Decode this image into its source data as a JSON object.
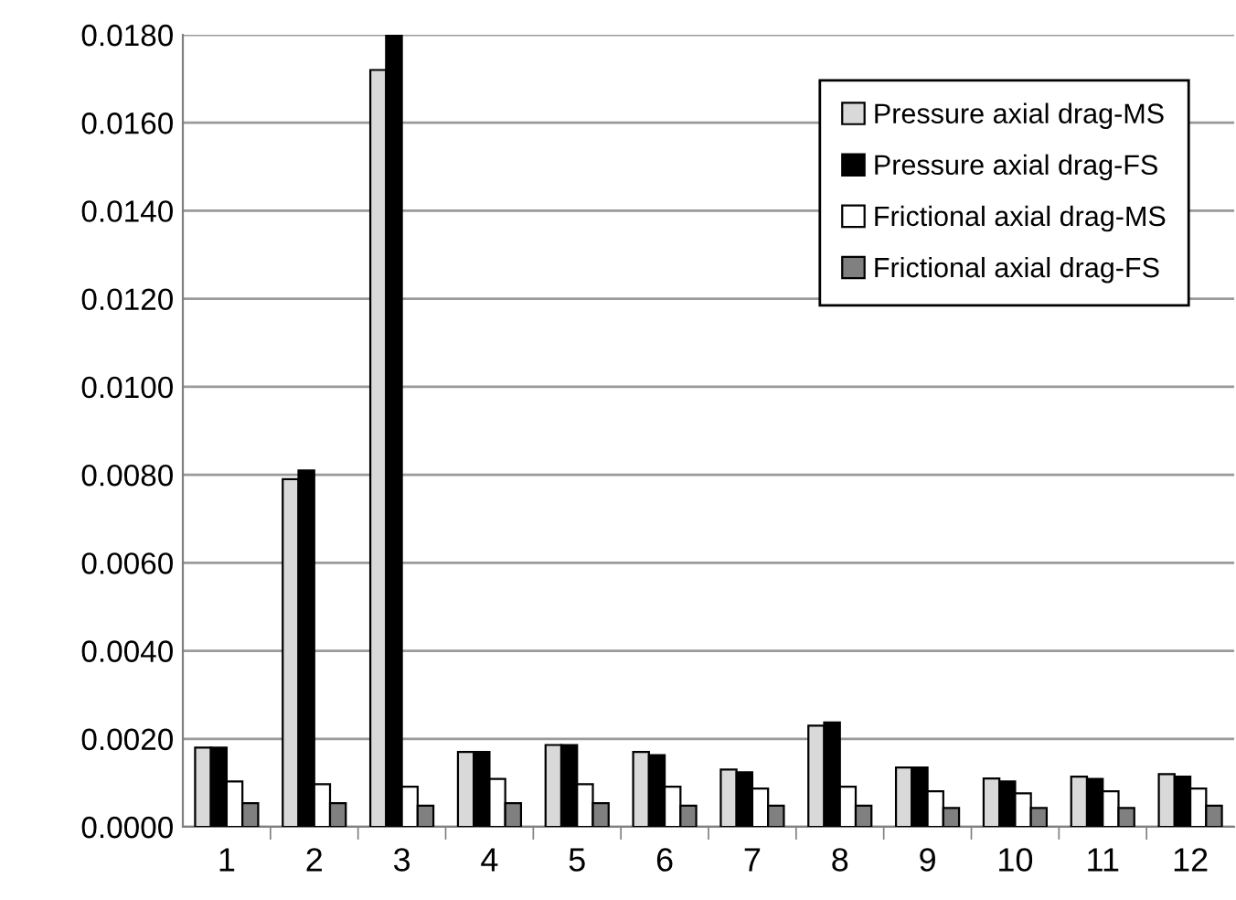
{
  "chart_data": {
    "type": "bar",
    "categories": [
      "1",
      "2",
      "3",
      "4",
      "5",
      "6",
      "7",
      "8",
      "9",
      "10",
      "11",
      "12"
    ],
    "series": [
      {
        "name": "Pressure axial drag-MS",
        "color": "#d9d9d9",
        "values": [
          0.0018,
          0.0079,
          0.0172,
          0.0017,
          0.00186,
          0.0017,
          0.0013,
          0.0023,
          0.00135,
          0.0011,
          0.00114,
          0.0012
        ]
      },
      {
        "name": "Pressure axial drag-FS",
        "color": "#000000",
        "values": [
          0.0018,
          0.0081,
          0.018,
          0.0017,
          0.00186,
          0.00163,
          0.00124,
          0.00237,
          0.00135,
          0.00103,
          0.00109,
          0.00114
        ]
      },
      {
        "name": "Frictional axial drag-MS",
        "color": "#ffffff",
        "values": [
          0.00103,
          0.00097,
          0.00091,
          0.00109,
          0.00097,
          0.00091,
          0.00087,
          0.00091,
          0.00081,
          0.00076,
          0.00081,
          0.00087
        ]
      },
      {
        "name": "Frictional axial drag-FS",
        "color": "#808080",
        "values": [
          0.00054,
          0.00054,
          0.00048,
          0.00054,
          0.00054,
          0.00048,
          0.00048,
          0.00048,
          0.00043,
          0.00043,
          0.00043,
          0.00048
        ]
      }
    ],
    "ylim": [
      0,
      0.018
    ],
    "yticks": [
      {
        "value": 0,
        "label": "0.0000"
      },
      {
        "value": 0.002,
        "label": "0.0020"
      },
      {
        "value": 0.004,
        "label": "0.0040"
      },
      {
        "value": 0.006,
        "label": "0.0060"
      },
      {
        "value": 0.008,
        "label": "0.0080"
      },
      {
        "value": 0.01,
        "label": "0.0100"
      },
      {
        "value": 0.012,
        "label": "0.0120"
      },
      {
        "value": 0.014,
        "label": "0.0140"
      },
      {
        "value": 0.016,
        "label": "0.0160"
      },
      {
        "value": 0.018,
        "label": "0.0180"
      }
    ],
    "grid": "y",
    "legend": "top right"
  }
}
